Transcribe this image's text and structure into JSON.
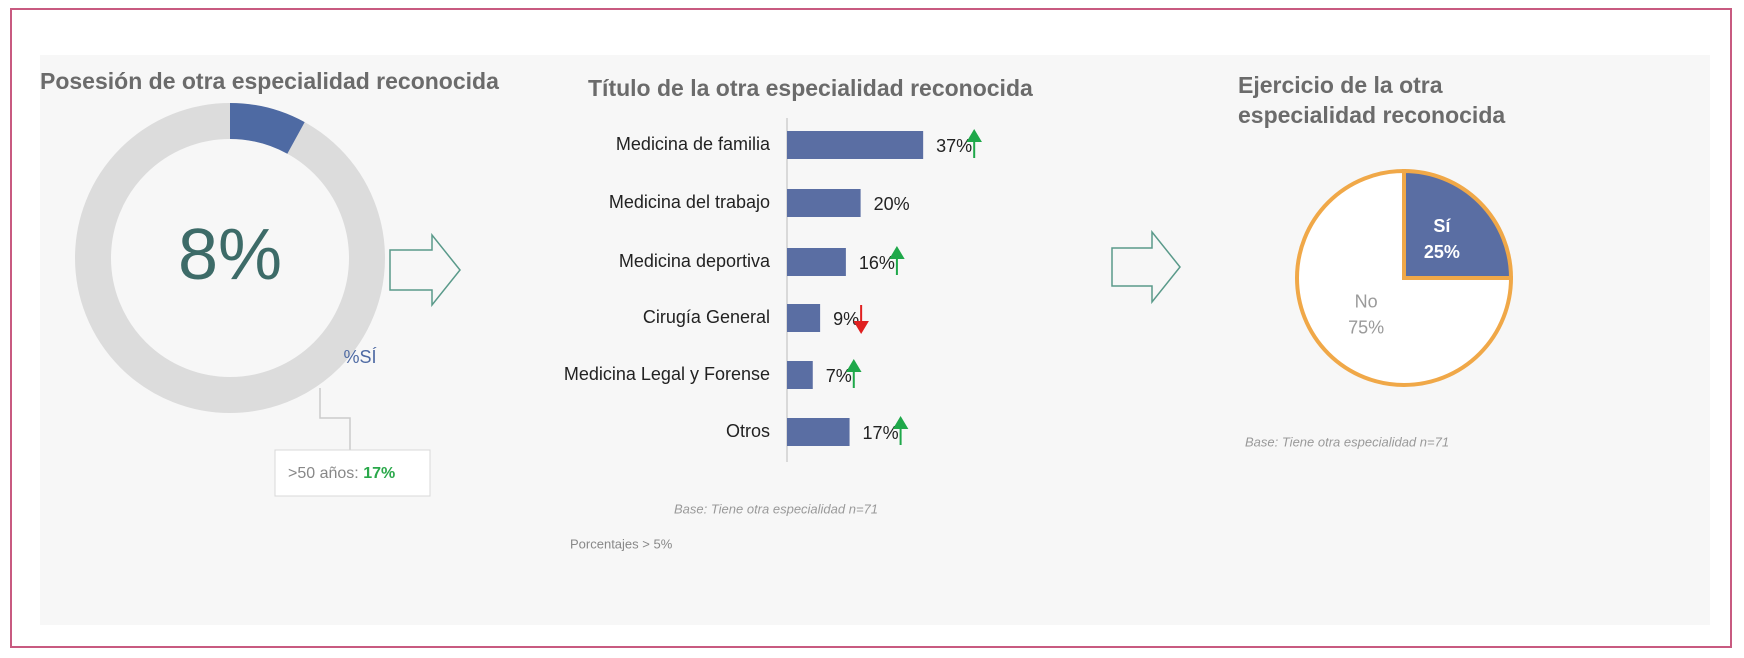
{
  "chart_data": [
    {
      "type": "donut",
      "title": "Posesión de otra especialidad reconocida",
      "categories": [
        "%SÍ"
      ],
      "values": [
        8
      ],
      "value_labels": [
        "8%"
      ],
      "color": "#4e6aa3",
      "track_color": "#dcdcdc",
      "annotation": {
        "text": ">50 años:",
        "value": 17,
        "label": "17%",
        "color": "#2aa84a"
      }
    },
    {
      "type": "bar",
      "orientation": "horizontal",
      "title": "Título de la otra especialidad reconocida",
      "categories": [
        "Medicina de familia",
        "Medicina del trabajo",
        "Medicina deportiva",
        "Cirugía General",
        "Medicina Legal y Forense",
        "Otros"
      ],
      "values": [
        37,
        20,
        16,
        9,
        7,
        17
      ],
      "value_labels": [
        "37%",
        "20%",
        "16%",
        "9%",
        "7%",
        "17%"
      ],
      "trends": [
        "up",
        null,
        "up",
        "down",
        "up",
        "up"
      ],
      "color": "#5a6ea3",
      "trend_colors": {
        "up": "#1fa84a",
        "down": "#e02020"
      },
      "note": "Base: Tiene otra especialidad n=71",
      "footnote": "Porcentajes > 5%"
    },
    {
      "type": "pie",
      "title": "Ejercicio de la otra especialidad reconocida",
      "categories": [
        "Sí",
        "No"
      ],
      "values": [
        25,
        75
      ],
      "value_labels": [
        "25%",
        "75%"
      ],
      "colors": [
        "#5a6ea3",
        "#ffffff"
      ],
      "label_colors": [
        "#ffffff",
        "#9a9a9a"
      ],
      "border_color": "#f0a848",
      "note": "Base: Tiene otra especialidad n=71"
    }
  ]
}
